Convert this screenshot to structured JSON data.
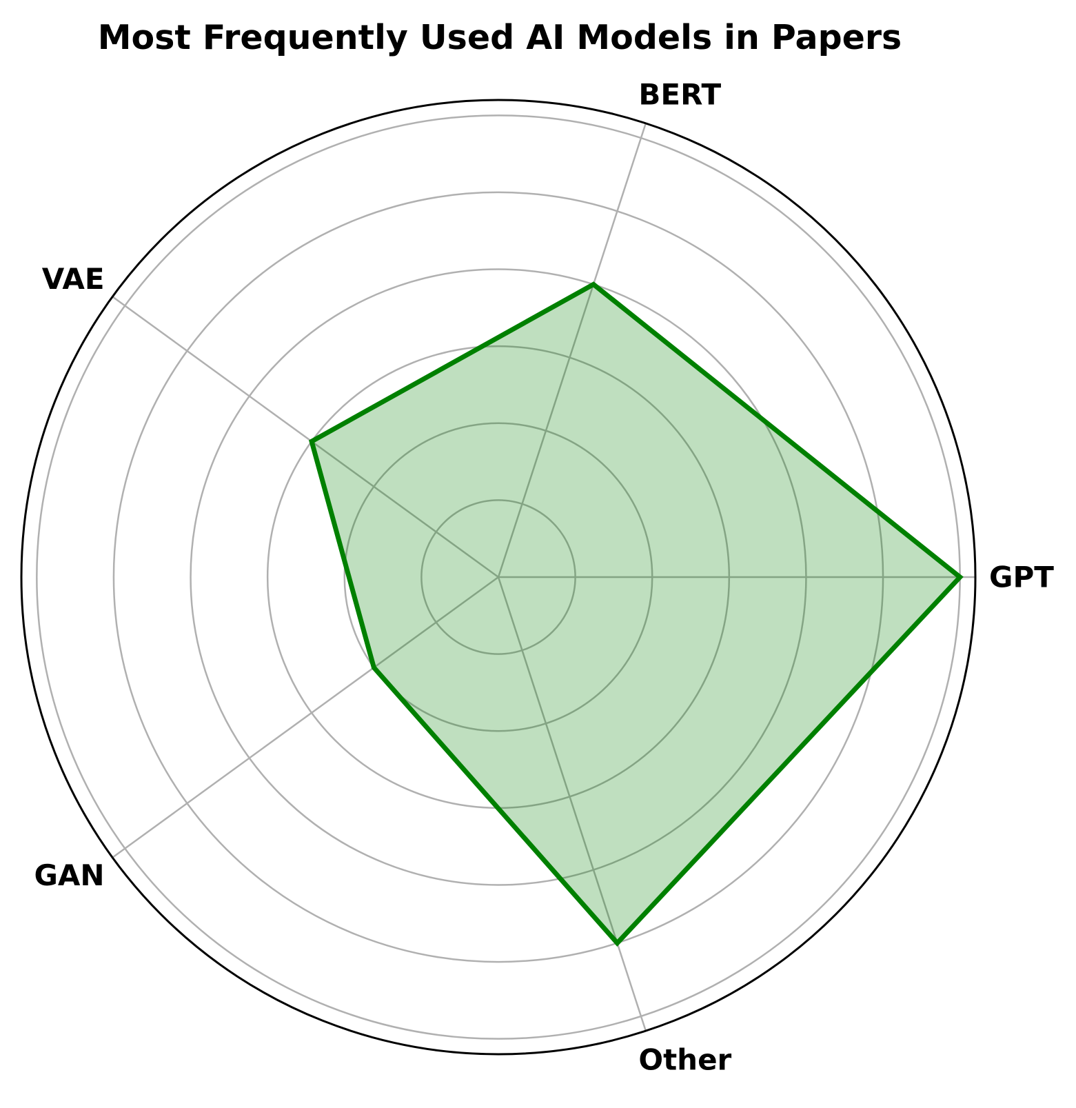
{
  "chart_data": {
    "type": "radar",
    "title": "Most Frequently Used AI Models in Papers",
    "categories": [
      "GPT",
      "BERT",
      "VAE",
      "GAN",
      "Other"
    ],
    "values": [
      30,
      20,
      15,
      10,
      25
    ],
    "rmax": 31,
    "rings": [
      5,
      10,
      15,
      20,
      25,
      30
    ],
    "show_radial_tick_labels": false,
    "grid": true
  },
  "colors": {
    "line": "#008000",
    "fill": "#008000",
    "fill_opacity": 0.25,
    "grid": "#b0b0b0",
    "frame": "#000000"
  }
}
